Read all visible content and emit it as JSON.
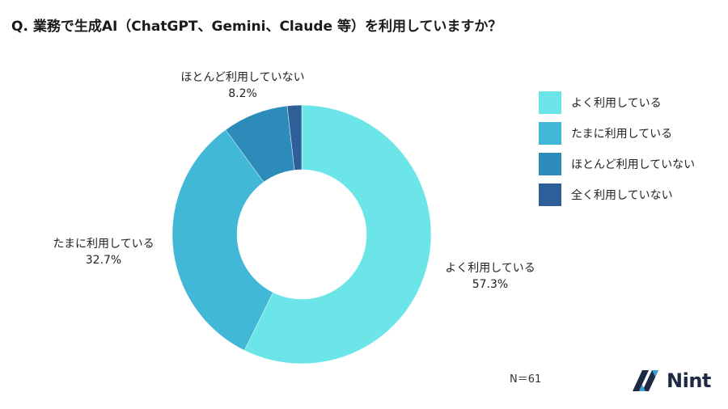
{
  "title": "Q. 業務で生成AI（ChatGPT、Gemini、Claude 等）を利用していますか？",
  "chart_data": {
    "type": "pie",
    "donut": true,
    "categories": [
      "よく利用している",
      "たまに利用している",
      "ほとんど利用していない",
      "全く利用していない"
    ],
    "values": [
      57.3,
      32.7,
      8.2,
      1.8
    ],
    "value_labels": [
      "57.3%",
      "32.7%",
      "8.2%",
      ""
    ],
    "colors": [
      "#6ce5e8",
      "#41b8d5",
      "#2d8bba",
      "#2f5f98"
    ],
    "legend_position": "right"
  },
  "legend": {
    "items": [
      {
        "label": "よく利用している",
        "color": "#6ce5e8"
      },
      {
        "label": "たまに利用している",
        "color": "#41b8d5"
      },
      {
        "label": "ほとんど利用していない",
        "color": "#2d8bba"
      },
      {
        "label": "全く利用していない",
        "color": "#2f5f98"
      }
    ]
  },
  "slice_labels": [
    {
      "name": "よく利用している",
      "value": "57.3%"
    },
    {
      "name": "たまに利用している",
      "value": "32.7%"
    },
    {
      "name": "ほとんど利用していない",
      "value": "8.2%"
    }
  ],
  "sample_size": "N＝61",
  "brand": {
    "name": "Nint"
  }
}
